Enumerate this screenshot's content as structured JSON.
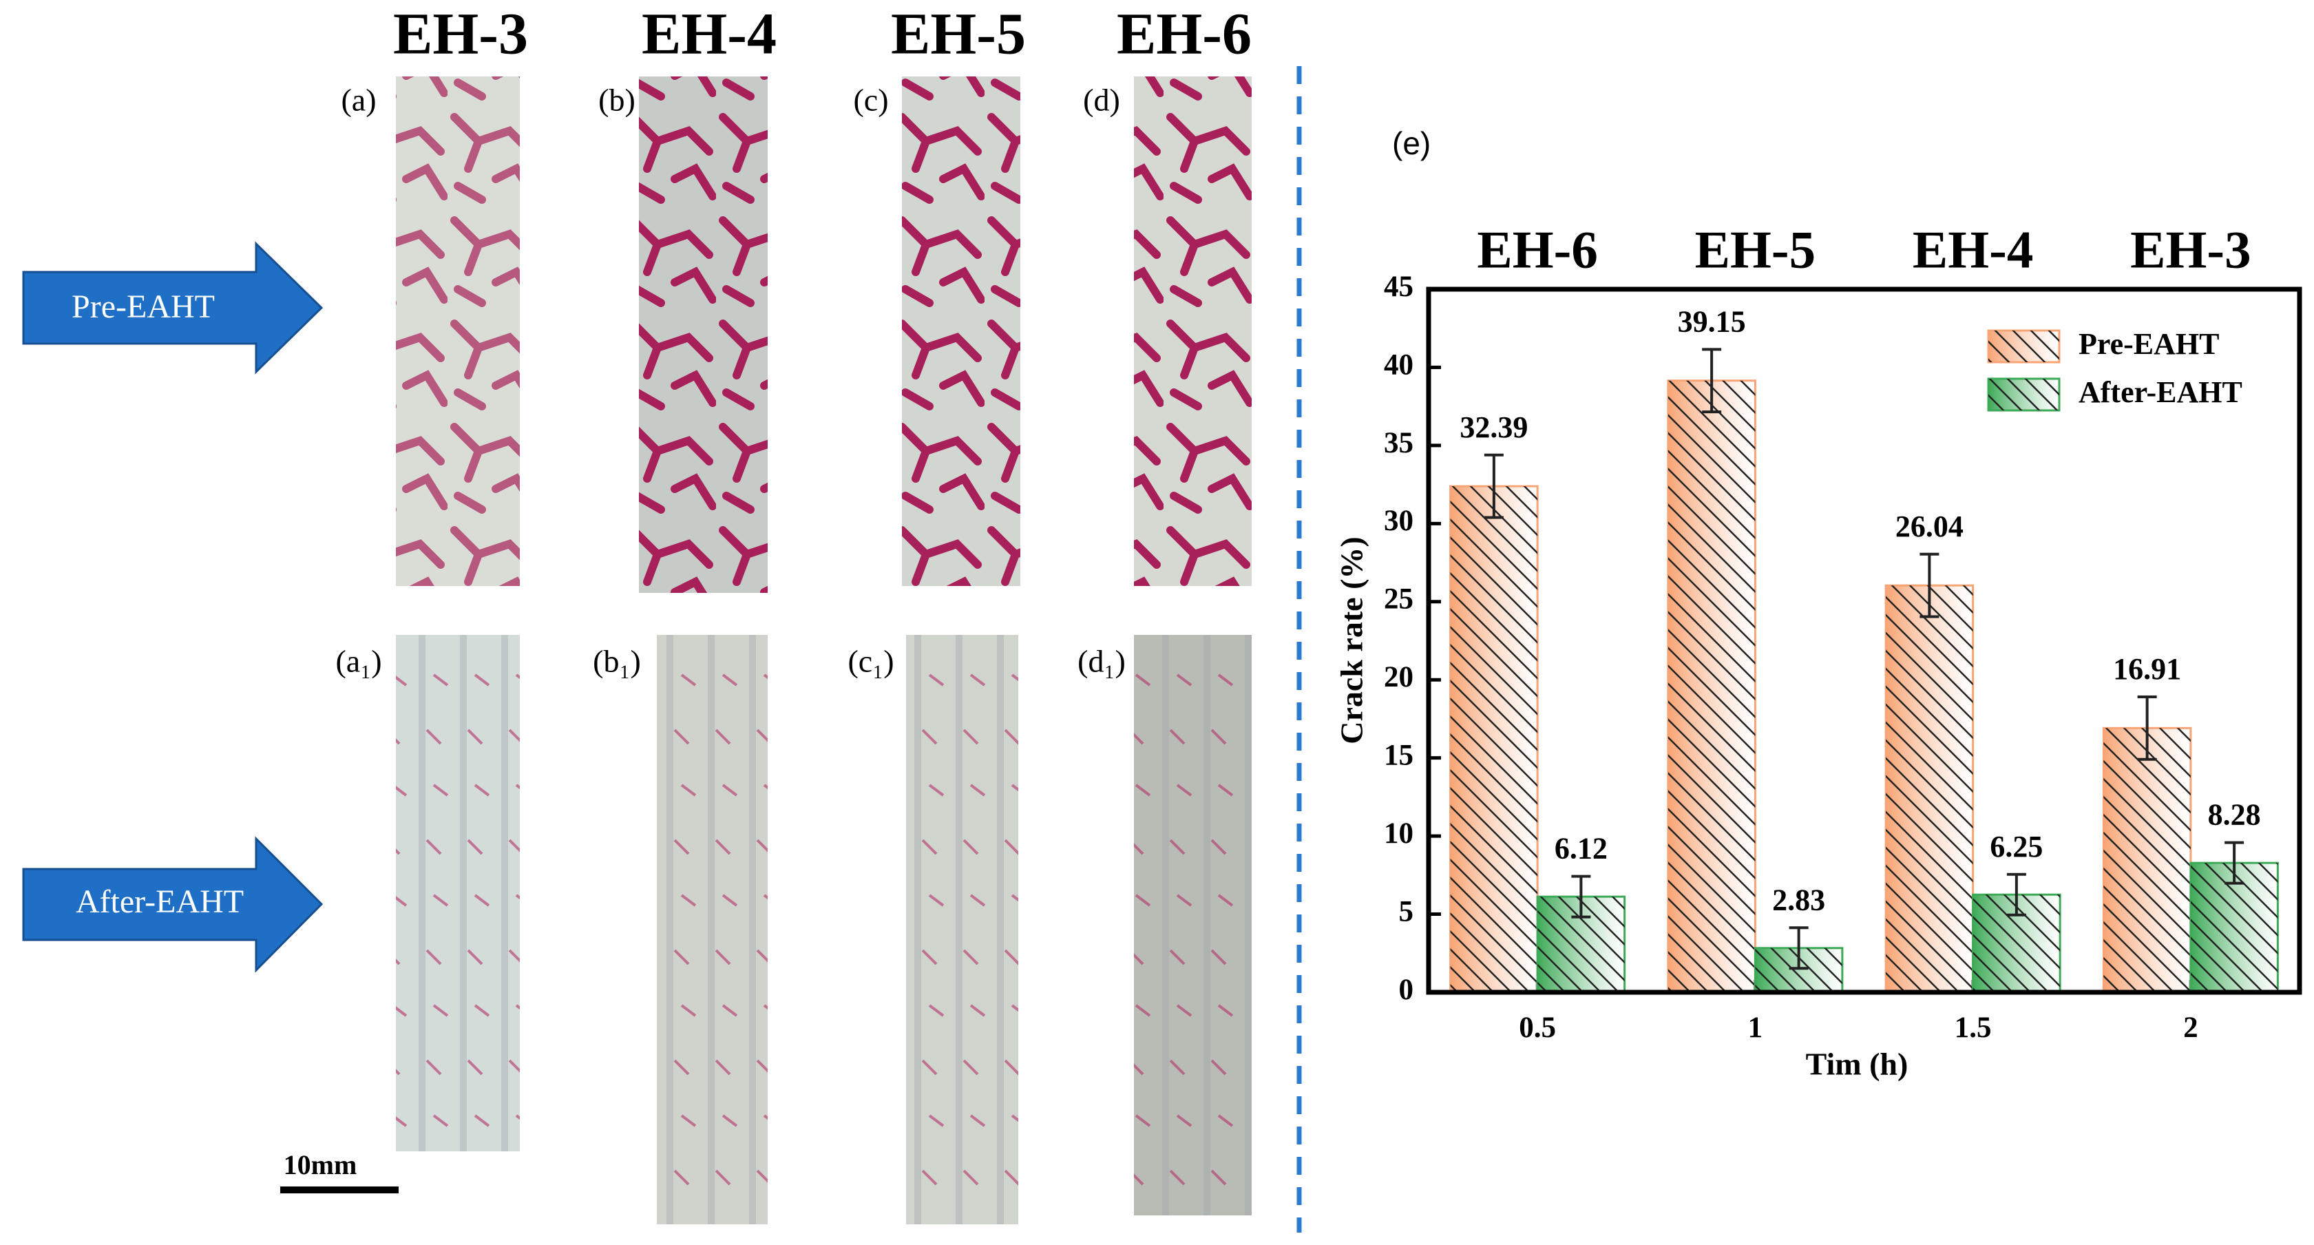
{
  "column_labels": [
    "EH-3",
    "EH-4",
    "EH-5",
    "EH-6"
  ],
  "panel_labels": [
    "(a)",
    "(b)",
    "(c)",
    "(d)",
    "(a₁)",
    "(b₁)",
    "(c₁)",
    "(d₁)"
  ],
  "arrows": [
    "Pre-EAHT",
    "After-EAHT"
  ],
  "scale_bar": "10mm",
  "chart_data": {
    "type": "bar",
    "panel_label": "(e)",
    "categories": [
      "0.5",
      "1",
      "1.5",
      "2"
    ],
    "top_categories": [
      "EH-6",
      "EH-5",
      "EH-4",
      "EH-3"
    ],
    "xlabel": "Tim (h)",
    "ylabel": "Crack rate (%)",
    "series": [
      {
        "name": "Pre-EAHT",
        "color": "#f8a474",
        "values": [
          32.39,
          39.15,
          26.04,
          16.91
        ],
        "errors": [
          2,
          2,
          2,
          2
        ]
      },
      {
        "name": "After-EAHT",
        "color": "#3daa57",
        "values": [
          6.12,
          2.83,
          6.25,
          8.28
        ],
        "errors": [
          1.3,
          1.3,
          1.3,
          1.3
        ]
      }
    ],
    "ylim": [
      0,
      45
    ],
    "yticks": [
      0,
      5,
      10,
      15,
      20,
      25,
      30,
      35,
      40,
      45
    ],
    "legend": "upper right",
    "hatch": true
  }
}
